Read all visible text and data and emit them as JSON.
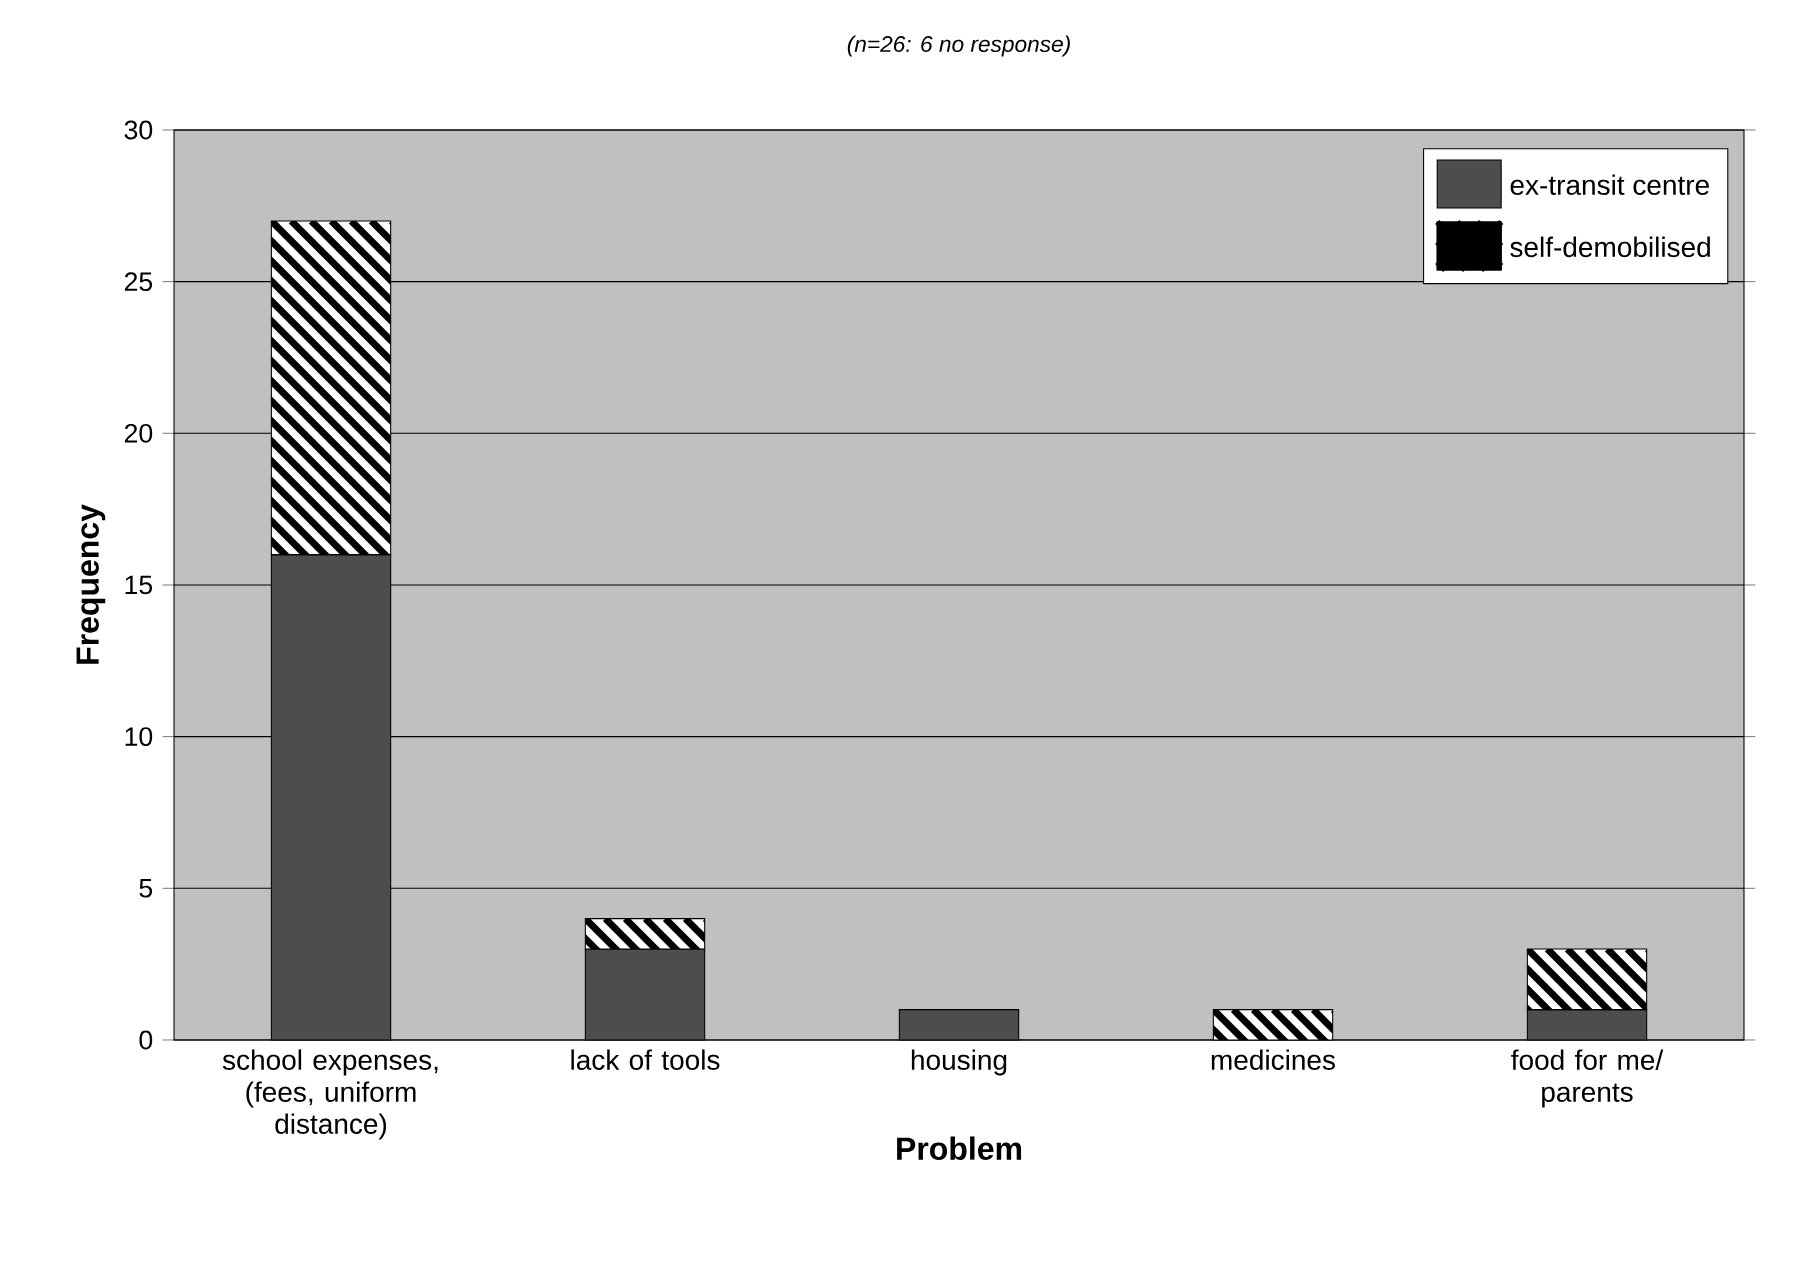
{
  "chart_data": {
    "type": "bar",
    "stacked": true,
    "title": "(n=26: 6 no response)",
    "xlabel": "Problem",
    "ylabel": "Frequency",
    "categories": [
      "school expenses, (fees, uniform distance)",
      "lack of tools",
      "housing",
      "medicines",
      "food for me/ parents"
    ],
    "series": [
      {
        "name": "ex-transit centre",
        "color": "#4d4d4d",
        "values": [
          16,
          3,
          1,
          0,
          1
        ]
      },
      {
        "name": "self-demobilised",
        "color": "#ffffff",
        "values": [
          11,
          1,
          0,
          1,
          2
        ]
      }
    ],
    "ylim": [
      0,
      30
    ],
    "yticks": [
      0,
      5,
      10,
      15,
      20,
      25,
      30
    ],
    "grid": "y",
    "legend": "top right"
  }
}
